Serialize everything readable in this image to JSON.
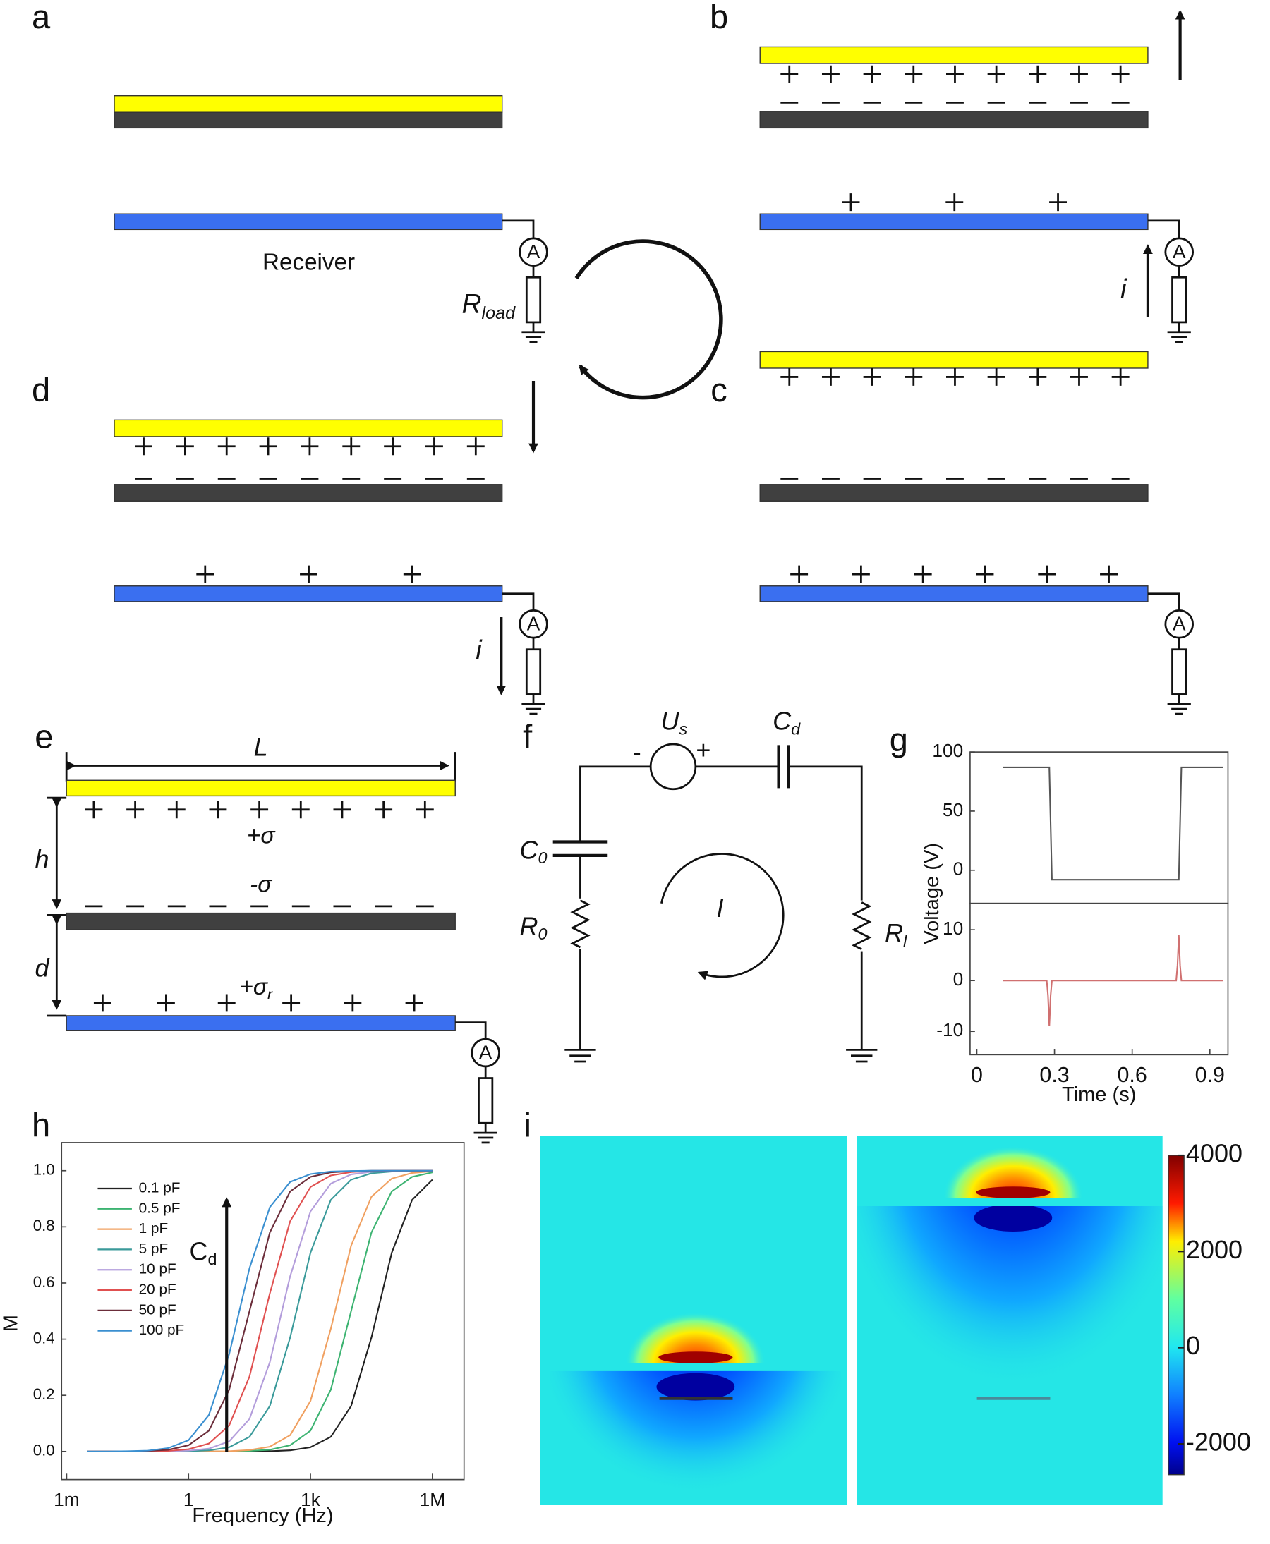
{
  "panel_labels": {
    "a": "a",
    "b": "b",
    "c": "c",
    "d": "d",
    "e": "e",
    "f": "f",
    "g": "g",
    "h": "h",
    "i": "i"
  },
  "panel_a": {
    "receiver": "Receiver",
    "load_resistor": {
      "symbol": "R",
      "subscript": "load"
    }
  },
  "ammeter_symbol": "A",
  "current_symbol": "i",
  "panel_e": {
    "length": "L",
    "gap_h": "h",
    "gap_d": "d",
    "charge_top": "+σ",
    "charge_middle": "-σ",
    "charge_receiver": {
      "symbol": "+σ",
      "subscript": "r"
    }
  },
  "panel_f": {
    "source": {
      "symbol": "U",
      "subscript": "s"
    },
    "source_minus": "-",
    "source_plus": "+",
    "cap_d": {
      "symbol": "C",
      "subscript": "d"
    },
    "cap_0": {
      "symbol": "C",
      "subscript": "0"
    },
    "res_0": {
      "symbol": "R",
      "subscript": "0"
    },
    "res_l": {
      "symbol": "R",
      "subscript": "l"
    },
    "loop_current": "I"
  },
  "chart_data": [
    {
      "type": "line",
      "ylabel": "Voltage (V)",
      "x": [
        0.1,
        0.28,
        0.29,
        0.78,
        0.79,
        0.95
      ],
      "series": [
        {
          "color": "#555555",
          "values": [
            87,
            87,
            -8,
            -8,
            87,
            87
          ]
        }
      ],
      "xlim": [
        -0.026,
        0.97
      ],
      "ylim": [
        -28,
        100
      ],
      "yticks": [
        0,
        50,
        100
      ]
    },
    {
      "type": "line",
      "xlabel": "Time (s)",
      "x": [
        0.1,
        0.27,
        0.275,
        0.28,
        0.285,
        0.29,
        0.77,
        0.775,
        0.78,
        0.785,
        0.79,
        0.95
      ],
      "series": [
        {
          "color": "#d07070",
          "values": [
            0,
            0,
            -3,
            -9,
            -3,
            0,
            0,
            3,
            9,
            3,
            0,
            0
          ]
        }
      ],
      "xlim": [
        -0.026,
        0.97
      ],
      "ylim": [
        -14.6,
        15.2
      ],
      "yticks": [
        -10,
        0,
        10
      ],
      "xticks": [
        0,
        0.3,
        0.6,
        0.9
      ]
    },
    {
      "type": "line",
      "xlabel": "Frequency (Hz)",
      "ylabel": "M",
      "xscale": "log",
      "legend": "upper left",
      "annotation": {
        "symbol": "C",
        "subscript": "d"
      },
      "x": [
        0.00316,
        0.01,
        0.0316,
        0.1,
        0.316,
        1,
        3.16,
        10,
        31.6,
        100,
        316,
        1000,
        3162,
        10000,
        31623,
        100000,
        316228,
        1000000
      ],
      "series": [
        {
          "name": "0.1 pF",
          "color": "#222222",
          "values": [
            0,
            0,
            0,
            0,
            0,
            0,
            0,
            0,
            0,
            0.001,
            0.004,
            0.015,
            0.052,
            0.162,
            0.406,
            0.708,
            0.896,
            0.968
          ]
        },
        {
          "name": "0.5 pF",
          "color": "#3cb371",
          "values": [
            0,
            0,
            0,
            0,
            0,
            0,
            0,
            0,
            0.002,
            0.006,
            0.022,
            0.074,
            0.22,
            0.5,
            0.78,
            0.926,
            0.978,
            0.994
          ]
        },
        {
          "name": "1 pF",
          "color": "#f0a060",
          "values": [
            0,
            0,
            0,
            0,
            0,
            0,
            0,
            0.001,
            0.005,
            0.017,
            0.058,
            0.18,
            0.437,
            0.733,
            0.907,
            0.972,
            0.992,
            0.998
          ]
        },
        {
          "name": "5 pF",
          "color": "#3a9a9a",
          "values": [
            0,
            0,
            0,
            0,
            0,
            0.001,
            0.004,
            0.015,
            0.052,
            0.162,
            0.406,
            0.708,
            0.896,
            0.968,
            0.991,
            0.997,
            0.999,
            1
          ]
        },
        {
          "name": "10 pF",
          "color": "#b39ddb",
          "values": [
            0,
            0,
            0,
            0,
            0.001,
            0.003,
            0.01,
            0.036,
            0.116,
            0.318,
            0.624,
            0.855,
            0.954,
            0.987,
            0.996,
            0.999,
            1,
            1
          ]
        },
        {
          "name": "20 pF",
          "color": "#e05050",
          "values": [
            0,
            0,
            0,
            0.001,
            0.002,
            0.008,
            0.028,
            0.093,
            0.267,
            0.563,
            0.82,
            0.942,
            0.983,
            0.995,
            0.999,
            1,
            1,
            1
          ]
        },
        {
          "name": "50 pF",
          "color": "#6b2d3a",
          "values": [
            0,
            0,
            0,
            0.002,
            0.006,
            0.022,
            0.074,
            0.22,
            0.5,
            0.78,
            0.926,
            0.978,
            0.994,
            0.998,
            1,
            1,
            1,
            1
          ]
        },
        {
          "name": "100 pF",
          "color": "#3a8fd0",
          "values": [
            0,
            0,
            0.001,
            0.003,
            0.012,
            0.04,
            0.13,
            0.347,
            0.653,
            0.87,
            0.96,
            0.988,
            0.997,
            0.999,
            1,
            1,
            1,
            1
          ]
        }
      ],
      "xlim": [
        0.00075,
        6000000
      ],
      "ylim": [
        -0.1,
        1.1
      ],
      "xticks": [
        {
          "value": 0.001,
          "label": "1m"
        },
        1,
        {
          "value": 1000,
          "label": "1k"
        },
        {
          "value": 1000000,
          "label": "1M"
        }
      ],
      "yticks": [
        {
          "value": 0,
          "label": "0.0"
        },
        {
          "value": 0.2,
          "label": "0.2"
        },
        {
          "value": 0.4,
          "label": "0.4"
        },
        {
          "value": 0.6,
          "label": "0.6"
        },
        {
          "value": 0.8,
          "label": "0.8"
        },
        {
          "value": 1,
          "label": "1.0"
        }
      ]
    }
  ],
  "colorbar": {
    "lim": [
      -2640,
      4000
    ],
    "ticks": [
      4000,
      2000,
      0,
      -2000
    ]
  }
}
